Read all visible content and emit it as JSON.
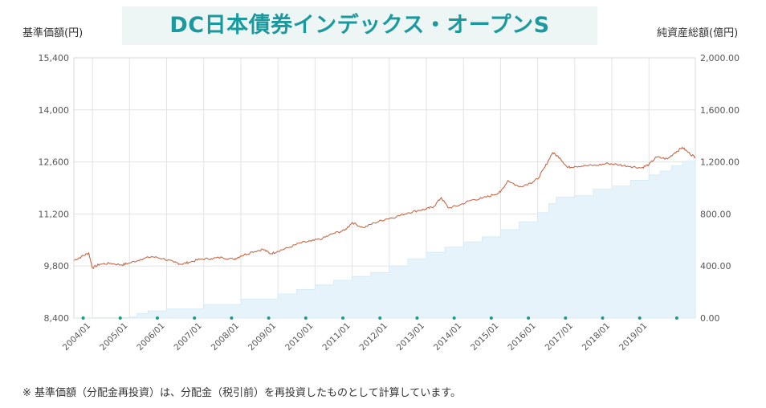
{
  "header": {
    "title": "DC日本債券インデックス・オープンS",
    "left_axis_title": "基準価額(円)",
    "right_axis_title": "純資産総額(億円)"
  },
  "footnote": "※ 基準価額（分配金再投資）は、分配金（税引前）を再投資したものとして計算しています。",
  "colors": {
    "price_line": "#c8694a",
    "assets_fill": "#e6f3fa",
    "grid": "#e3e3e3",
    "marker": "#1a9a8a",
    "title_text": "#1a9a9e"
  },
  "chart_data": {
    "type": "line",
    "title": "DC日本債券インデックス・オープンS",
    "y_left": {
      "label": "基準価額(円)",
      "min": 8400,
      "max": 15400,
      "ticks": [
        "8,400",
        "9,800",
        "11,200",
        "12,600",
        "14,000",
        "15,400"
      ]
    },
    "y_right": {
      "label": "純資産総額(億円)",
      "min": 0,
      "max": 2000,
      "ticks": [
        "0.00",
        "400.00",
        "800.00",
        "1,200.00",
        "1,600.00",
        "2,000.00"
      ]
    },
    "x_range": [
      2003.5,
      2020.25
    ],
    "x_ticks": [
      "2004/01",
      "2005/01",
      "2006/01",
      "2007/01",
      "2008/01",
      "2009/01",
      "2010/01",
      "2011/01",
      "2012/01",
      "2013/01",
      "2014/01",
      "2015/01",
      "2016/01",
      "2017/01",
      "2018/01",
      "2019/01"
    ],
    "series": [
      {
        "name": "基準価額",
        "axis": "left",
        "kind": "line",
        "x": [
          2003.5,
          2003.7,
          2003.9,
          2004.0,
          2004.2,
          2004.5,
          2004.8,
          2005.0,
          2005.3,
          2005.6,
          2005.9,
          2006.2,
          2006.4,
          2006.6,
          2006.9,
          2007.2,
          2007.5,
          2007.8,
          2008.0,
          2008.3,
          2008.6,
          2008.8,
          2009.0,
          2009.3,
          2009.6,
          2009.9,
          2010.2,
          2010.5,
          2010.8,
          2011.0,
          2011.3,
          2011.6,
          2011.9,
          2012.2,
          2012.5,
          2012.8,
          2013.0,
          2013.2,
          2013.4,
          2013.6,
          2013.9,
          2014.2,
          2014.5,
          2014.8,
          2015.0,
          2015.2,
          2015.5,
          2015.8,
          2016.0,
          2016.2,
          2016.4,
          2016.6,
          2016.8,
          2017.0,
          2017.3,
          2017.6,
          2017.9,
          2018.2,
          2018.5,
          2018.8,
          2019.0,
          2019.2,
          2019.5,
          2019.7,
          2019.9,
          2020.1,
          2020.25
        ],
        "values": [
          9950,
          10050,
          10150,
          9750,
          9850,
          9870,
          9830,
          9880,
          9980,
          10050,
          10000,
          9900,
          9850,
          9900,
          9980,
          10000,
          10030,
          9980,
          10070,
          10180,
          10250,
          10130,
          10200,
          10300,
          10420,
          10470,
          10540,
          10680,
          10760,
          10970,
          10830,
          10960,
          11060,
          11130,
          11230,
          11300,
          11330,
          11400,
          11640,
          11360,
          11440,
          11570,
          11620,
          11710,
          11790,
          12100,
          11930,
          12030,
          12140,
          12470,
          12850,
          12710,
          12450,
          12480,
          12500,
          12510,
          12560,
          12520,
          12480,
          12440,
          12530,
          12730,
          12680,
          12850,
          12990,
          12820,
          12730
        ]
      },
      {
        "name": "純資産総額",
        "axis": "right",
        "kind": "area",
        "x": [
          2003.5,
          2004.0,
          2005.0,
          2005.2,
          2005.5,
          2006.0,
          2007.0,
          2008.0,
          2009.0,
          2009.5,
          2010.0,
          2010.5,
          2011.0,
          2011.5,
          2012.0,
          2012.5,
          2013.0,
          2013.5,
          2014.0,
          2014.5,
          2015.0,
          2015.5,
          2016.0,
          2016.3,
          2016.5,
          2017.0,
          2017.5,
          2018.0,
          2018.5,
          2019.0,
          2019.3,
          2019.6,
          2019.9,
          2020.25
        ],
        "values": [
          0,
          3,
          8,
          35,
          55,
          70,
          105,
          145,
          185,
          220,
          255,
          290,
          320,
          350,
          400,
          455,
          505,
          545,
          585,
          625,
          680,
          740,
          810,
          880,
          930,
          940,
          990,
          1015,
          1060,
          1100,
          1130,
          1170,
          1205,
          1230
        ]
      }
    ],
    "period_markers_x": [
      2003.75,
      2004.75,
      2005.75,
      2006.75,
      2007.75,
      2008.75,
      2009.75,
      2010.75,
      2011.75,
      2012.75,
      2013.75,
      2014.75,
      2015.75,
      2016.75,
      2017.75,
      2018.75,
      2019.75
    ]
  }
}
